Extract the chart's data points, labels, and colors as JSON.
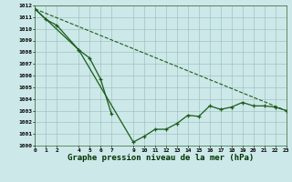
{
  "title": "Graphe pression niveau de la mer (hPa)",
  "line1_x": [
    0,
    1,
    2,
    4,
    5,
    6,
    7
  ],
  "line1_y": [
    1011.7,
    1010.8,
    1010.3,
    1008.2,
    1007.5,
    1005.7,
    1002.7
  ],
  "line2_x": [
    0,
    4,
    9,
    10,
    11,
    12,
    13,
    14,
    15,
    16,
    17,
    18,
    19,
    20,
    21,
    22,
    23
  ],
  "line2_y": [
    1011.7,
    1008.2,
    1000.3,
    1000.8,
    1001.4,
    1001.4,
    1001.9,
    1002.6,
    1002.5,
    1003.4,
    1003.1,
    1003.3,
    1003.7,
    1003.4,
    1003.4,
    1003.3,
    1003.0
  ],
  "line3_x": [
    0,
    23
  ],
  "line3_y": [
    1011.7,
    1003.0
  ],
  "ylim": [
    1000,
    1012
  ],
  "xlim": [
    0,
    23
  ],
  "yticks": [
    1000,
    1001,
    1002,
    1003,
    1004,
    1005,
    1006,
    1007,
    1008,
    1009,
    1010,
    1011,
    1012
  ],
  "xticks": [
    0,
    1,
    2,
    4,
    5,
    6,
    7,
    9,
    10,
    11,
    12,
    13,
    14,
    15,
    16,
    17,
    18,
    19,
    20,
    21,
    22,
    23
  ],
  "line_color": "#1a5c1a",
  "bg_color": "#cce8e8",
  "grid_color": "#99bbbb",
  "title_fontsize": 6.5
}
